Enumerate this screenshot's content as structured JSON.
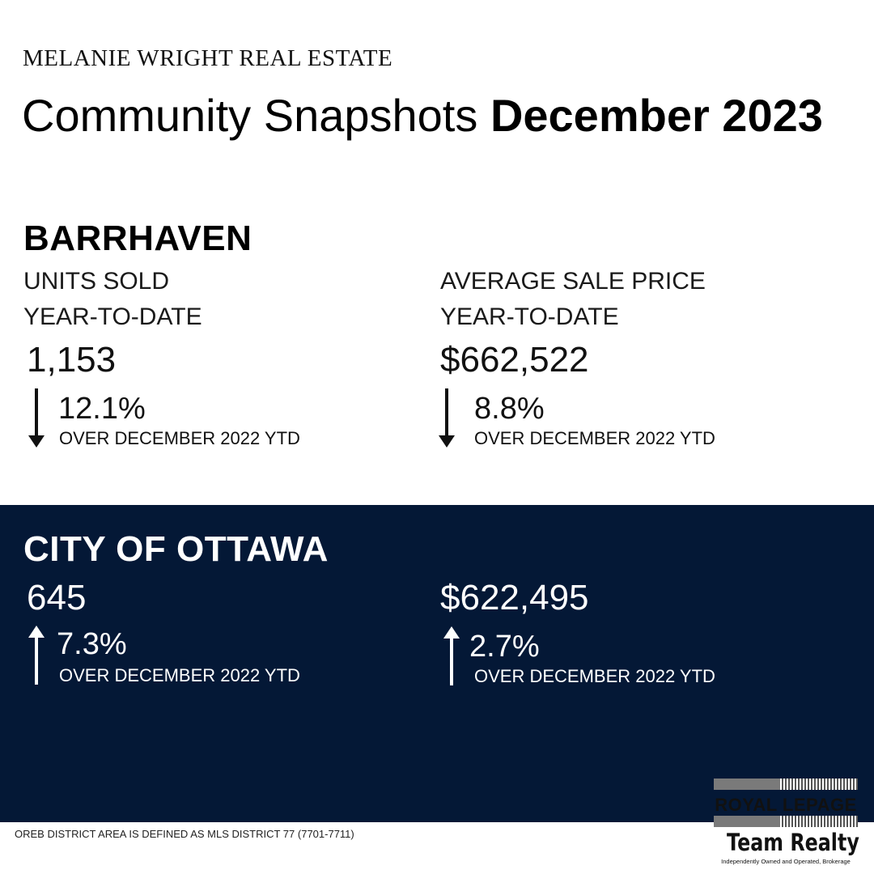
{
  "brand": "MELANIE WRIGHT REAL ESTATE",
  "title": {
    "regular": "Community Snapshots",
    "bold": "December 2023"
  },
  "barrhaven": {
    "name": "BARRHAVEN",
    "units": {
      "label": "UNITS SOLD",
      "period": "YEAR-TO-DATE",
      "value": "1,153",
      "change": "12.1%",
      "direction": "down",
      "comparison": "OVER DECEMBER 2022 YTD"
    },
    "price": {
      "label": "AVERAGE SALE PRICE",
      "period": "YEAR-TO-DATE",
      "value": "$662,522",
      "change": "8.8%",
      "direction": "down",
      "comparison": "OVER DECEMBER 2022 YTD"
    }
  },
  "ottawa": {
    "name": "CITY OF OTTAWA",
    "units": {
      "value": "645",
      "change": "7.3%",
      "direction": "up",
      "comparison": "OVER DECEMBER 2022 YTD"
    },
    "price": {
      "value": "$622,495",
      "change": "2.7%",
      "direction": "up",
      "comparison": "OVER DECEMBER 2022 YTD"
    }
  },
  "footer_note": "OREB DISTRICT AREA IS DEFINED AS MLS DISTRICT 77 (7701-7711)",
  "logo": {
    "name": "ROYAL LEPAGE",
    "team": "Team Realty",
    "tagline": "Independently Owned and Operated, Brokerage"
  },
  "colors": {
    "dark_panel": "#041836",
    "text": "#111111"
  }
}
